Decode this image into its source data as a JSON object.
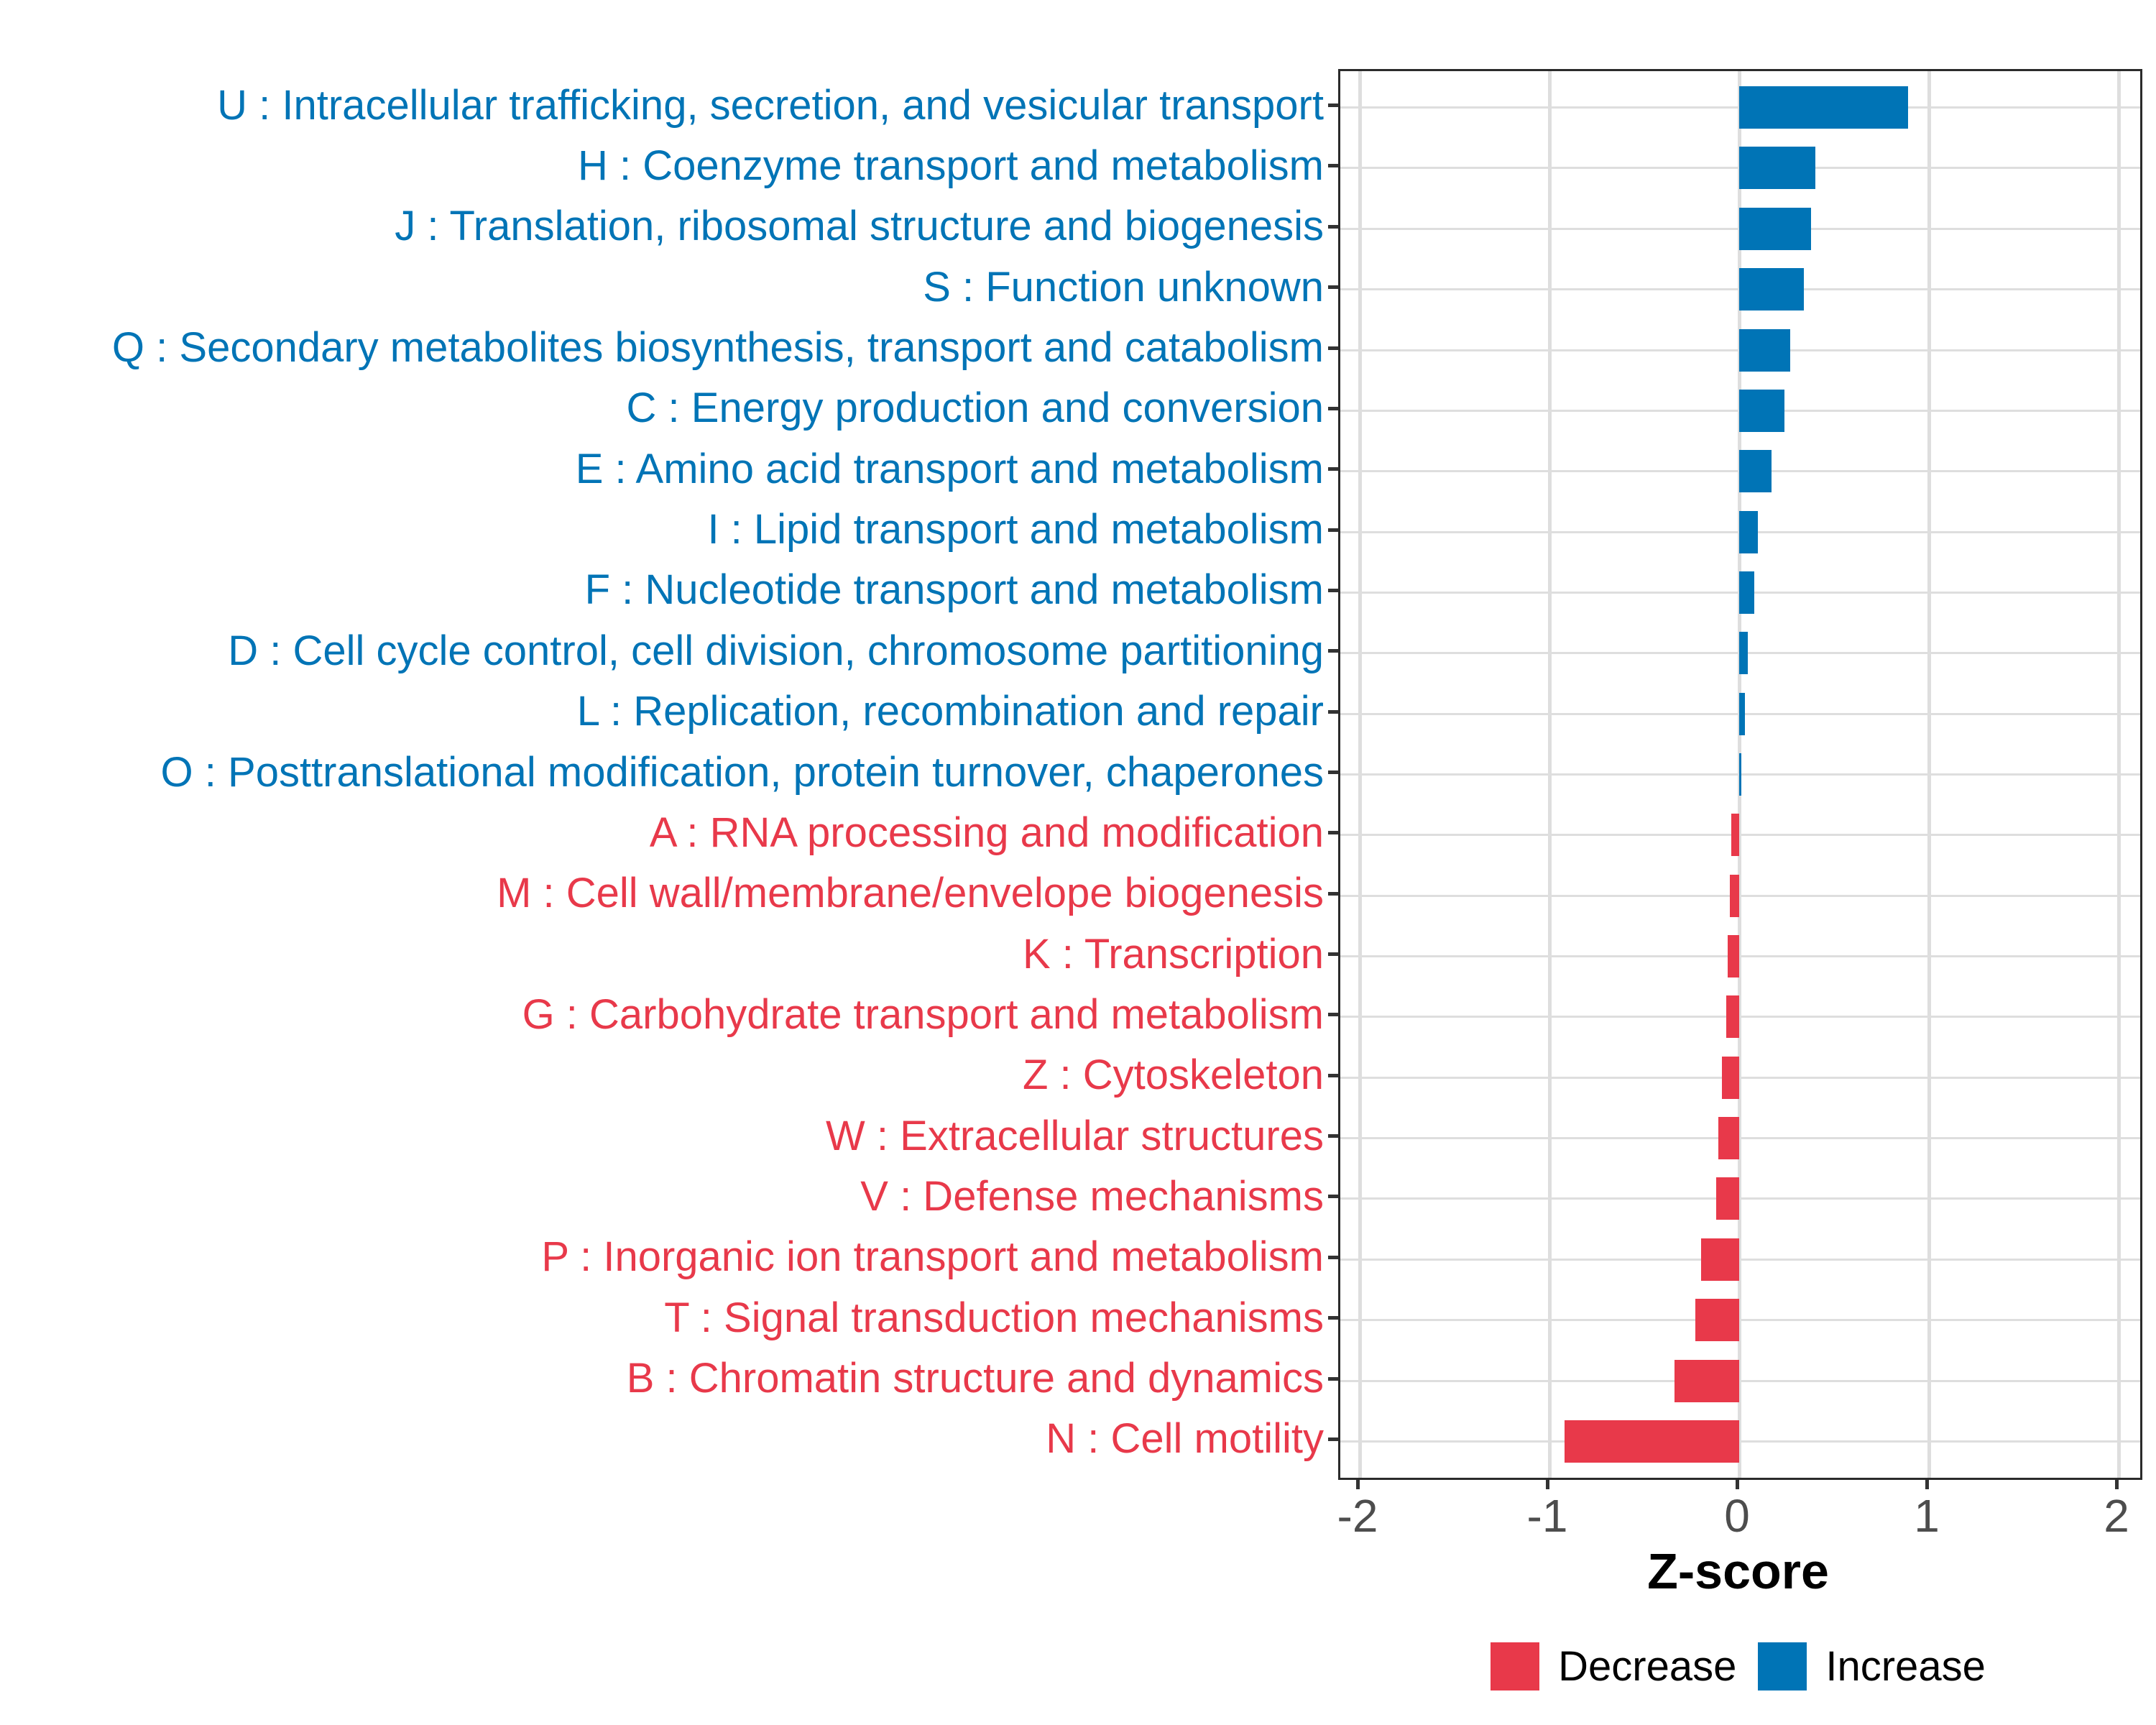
{
  "chart_data": {
    "type": "bar",
    "orientation": "horizontal",
    "xlabel": "Z-score",
    "x_ticks": [
      "-2",
      "-1",
      "0",
      "1",
      "2"
    ],
    "x_tick_values": [
      -2,
      -1,
      0,
      1,
      2
    ],
    "xlim": [
      -2.1,
      2.11
    ],
    "grid": "on",
    "legend_position": "bottom",
    "items": [
      {
        "code": "U",
        "label": "U : Intracellular trafficking, secretion, and vesicular transport",
        "value": 0.89,
        "group": "Increase"
      },
      {
        "code": "H",
        "label": "H : Coenzyme transport and metabolism",
        "value": 0.4,
        "group": "Increase"
      },
      {
        "code": "J",
        "label": "J : Translation, ribosomal structure and biogenesis",
        "value": 0.38,
        "group": "Increase"
      },
      {
        "code": "S",
        "label": "S : Function unknown",
        "value": 0.34,
        "group": "Increase"
      },
      {
        "code": "Q",
        "label": "Q : Secondary metabolites biosynthesis, transport and catabolism",
        "value": 0.27,
        "group": "Increase"
      },
      {
        "code": "C",
        "label": "C : Energy production and conversion",
        "value": 0.24,
        "group": "Increase"
      },
      {
        "code": "E",
        "label": "E : Amino acid transport and metabolism",
        "value": 0.17,
        "group": "Increase"
      },
      {
        "code": "I",
        "label": "I : Lipid transport and metabolism",
        "value": 0.1,
        "group": "Increase"
      },
      {
        "code": "F",
        "label": "F : Nucleotide transport and metabolism",
        "value": 0.08,
        "group": "Increase"
      },
      {
        "code": "D",
        "label": "D : Cell cycle control, cell division, chromosome partitioning",
        "value": 0.045,
        "group": "Increase"
      },
      {
        "code": "L",
        "label": "L : Replication, recombination and repair",
        "value": 0.03,
        "group": "Increase"
      },
      {
        "code": "O",
        "label": "O : Posttranslational modification, protein turnover, chaperones",
        "value": 0.012,
        "group": "Increase"
      },
      {
        "code": "A",
        "label": "A : RNA processing and modification",
        "value": -0.04,
        "group": "Decrease"
      },
      {
        "code": "M",
        "label": "M : Cell wall/membrane/envelope biogenesis",
        "value": -0.05,
        "group": "Decrease"
      },
      {
        "code": "K",
        "label": "K : Transcription",
        "value": -0.06,
        "group": "Decrease"
      },
      {
        "code": "G",
        "label": "G : Carbohydrate transport and metabolism",
        "value": -0.07,
        "group": "Decrease"
      },
      {
        "code": "Z",
        "label": "Z : Cytoskeleton",
        "value": -0.09,
        "group": "Decrease"
      },
      {
        "code": "W",
        "label": "W : Extracellular structures",
        "value": -0.11,
        "group": "Decrease"
      },
      {
        "code": "V",
        "label": "V : Defense mechanisms",
        "value": -0.12,
        "group": "Decrease"
      },
      {
        "code": "P",
        "label": "P : Inorganic ion transport and metabolism",
        "value": -0.2,
        "group": "Decrease"
      },
      {
        "code": "T",
        "label": "T : Signal transduction mechanisms",
        "value": -0.23,
        "group": "Decrease"
      },
      {
        "code": "B",
        "label": "B : Chromatin structure and dynamics",
        "value": -0.34,
        "group": "Decrease"
      },
      {
        "code": "N",
        "label": "N : Cell motility",
        "value": -0.92,
        "group": "Decrease"
      }
    ],
    "legend": [
      {
        "label": "Decrease",
        "color": "#E8394A"
      },
      {
        "label": "Increase",
        "color": "#0074B6"
      }
    ]
  },
  "colors": {
    "increase": "#0074B6",
    "decrease": "#E8394A",
    "gridline": "#DEDEDE",
    "panel_border": "#2B2B2B",
    "tick": "#333333",
    "axis_text": "#4D4D4D",
    "axis_title": "#000000",
    "background": "#FFFFFF"
  }
}
